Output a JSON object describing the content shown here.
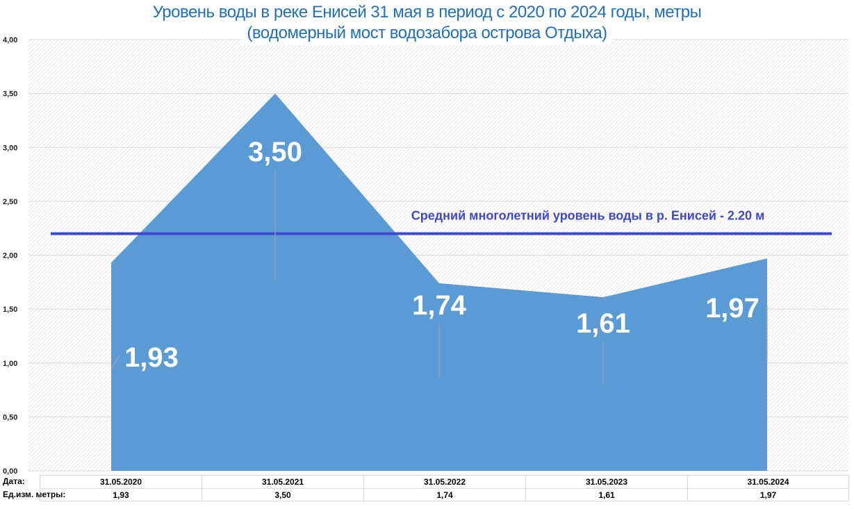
{
  "chart_data": {
    "type": "area",
    "title": "Уровень воды в реке Енисей 31 мая в период с 2020 по 2024 годы, метры",
    "subtitle": "(водомерный мост водозабора острова Отдыха)",
    "categories": [
      "31.05.2020",
      "31.05.2021",
      "31.05.2022",
      "31.05.2023",
      "31.05.2024"
    ],
    "values": [
      1.93,
      3.5,
      1.74,
      1.61,
      1.97
    ],
    "data_labels": [
      "1,93",
      "3,50",
      "1,74",
      "1,61",
      "1,97"
    ],
    "ylim": [
      0,
      4
    ],
    "yticks": [
      "0,00",
      "0,50",
      "1,00",
      "1,50",
      "2,00",
      "2,50",
      "3,00",
      "3,50",
      "4,00"
    ],
    "grid": true,
    "reference_line": {
      "value": 2.2,
      "label": "Средний многолетний уровень воды в р. Енисей - 2.20 м",
      "color": "#3f48cc"
    },
    "area_color": "#5b9bd5",
    "table": {
      "row1_label": "Дата:",
      "row2_label": "Ед.изм. метры:",
      "values_text": [
        "1,93",
        "3,50",
        "1,74",
        "1,61",
        "1,97"
      ]
    }
  }
}
